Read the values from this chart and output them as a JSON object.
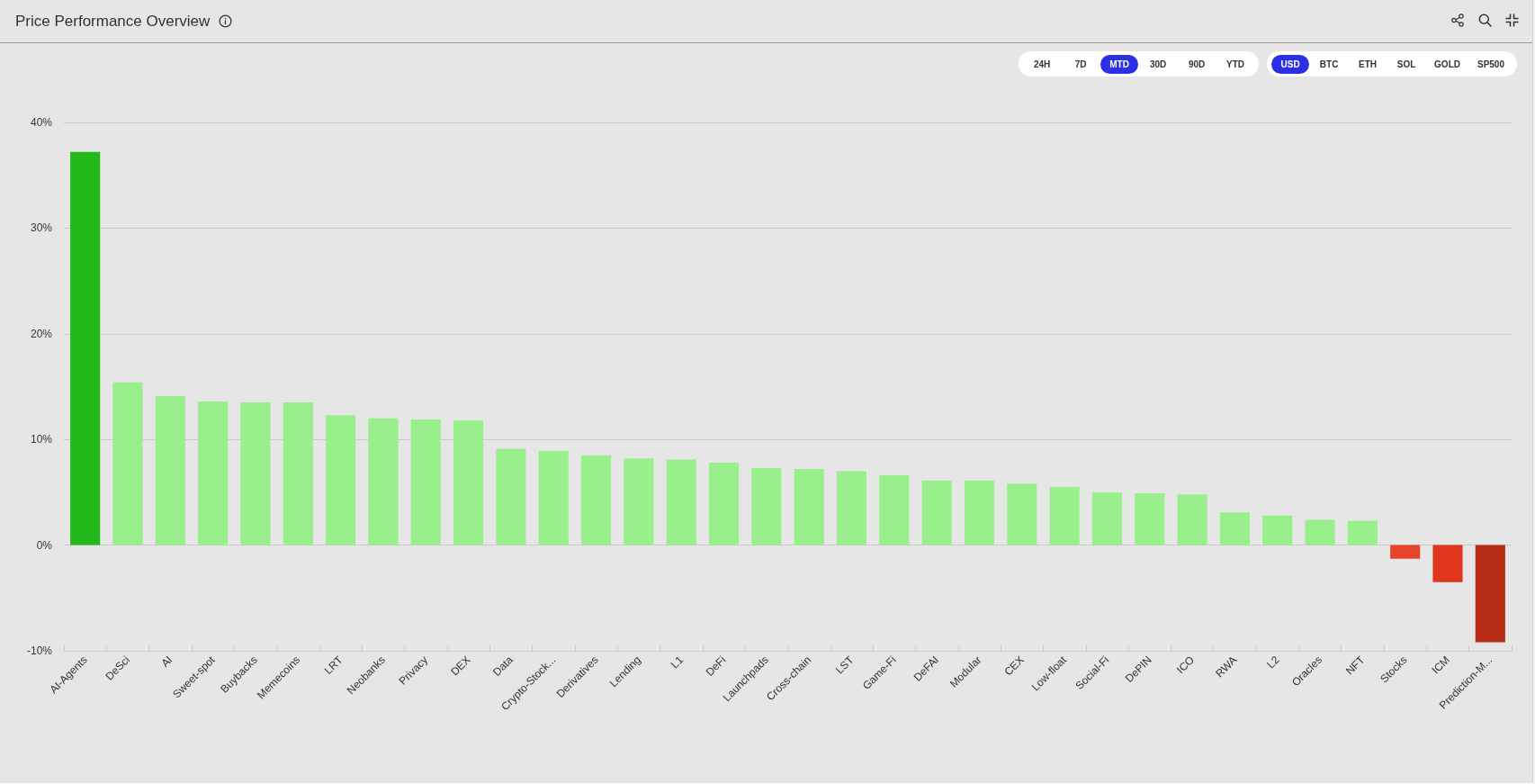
{
  "chart_data": {
    "type": "bar",
    "title": "Price Performance Overview",
    "categories": [
      "AI-Agents",
      "DeSci",
      "AI",
      "Sweet-spot",
      "Buybacks",
      "Memecoins",
      "LRT",
      "Neobanks",
      "Privacy",
      "DEX",
      "Data",
      "Crypto-Stock...",
      "Derivatives",
      "Lending",
      "L1",
      "DeFi",
      "Launchpads",
      "Cross-chain",
      "LST",
      "Game-Fi",
      "DeFAI",
      "Modular",
      "CEX",
      "Low-float",
      "Social-Fi",
      "DePIN",
      "ICO",
      "RWA",
      "L2",
      "Oracles",
      "NFT",
      "Stocks",
      "ICM",
      "Prediction-M..."
    ],
    "values": [
      37.2,
      15.4,
      14.1,
      13.6,
      13.5,
      13.5,
      12.3,
      12.0,
      11.9,
      11.8,
      9.1,
      8.9,
      8.5,
      8.2,
      8.1,
      7.8,
      7.3,
      7.2,
      7.0,
      6.6,
      6.1,
      6.1,
      5.8,
      5.5,
      5.0,
      4.9,
      4.8,
      3.1,
      2.8,
      2.4,
      2.3,
      -1.3,
      -3.5,
      -9.2
    ],
    "colors": [
      "#23b91b",
      "#98ef8c",
      "#98ef8c",
      "#98ef8c",
      "#98ef8c",
      "#98ef8c",
      "#98ef8c",
      "#98ef8c",
      "#98ef8c",
      "#98ef8c",
      "#98ef8c",
      "#98ef8c",
      "#98ef8c",
      "#98ef8c",
      "#98ef8c",
      "#98ef8c",
      "#98ef8c",
      "#98ef8c",
      "#98ef8c",
      "#98ef8c",
      "#98ef8c",
      "#98ef8c",
      "#98ef8c",
      "#98ef8c",
      "#98ef8c",
      "#98ef8c",
      "#98ef8c",
      "#98ef8c",
      "#98ef8c",
      "#98ef8c",
      "#98ef8c",
      "#e6432a",
      "#e0361e",
      "#b82d18"
    ],
    "ylim": [
      -10,
      40
    ],
    "yticks": [
      {
        "value": -10,
        "label": "-10%"
      },
      {
        "value": 0,
        "label": "0%"
      },
      {
        "value": 10,
        "label": "10%"
      },
      {
        "value": 20,
        "label": "20%"
      },
      {
        "value": 30,
        "label": "30%"
      },
      {
        "value": 40,
        "label": "40%"
      }
    ],
    "grid": "y",
    "annotations": [
      "24H",
      "7D",
      "MTD",
      "30D",
      "90D",
      "YTD",
      "USD",
      "BTC",
      "ETH",
      "SOL",
      "GOLD",
      "SP500"
    ]
  }
}
